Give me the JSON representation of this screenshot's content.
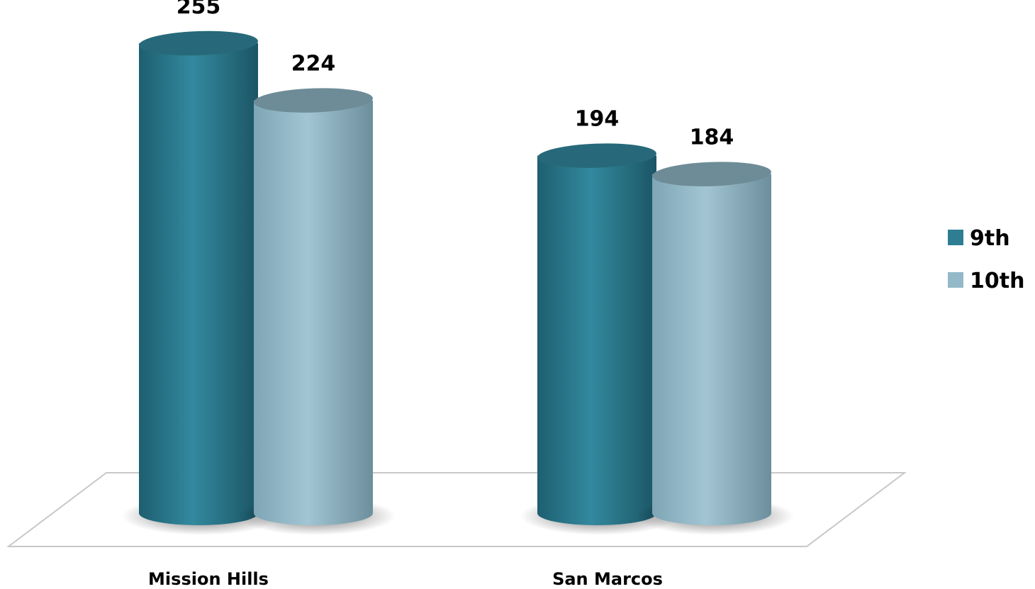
{
  "chart_data": {
    "type": "bar",
    "style": "3d-cylinder",
    "categories": [
      "Mission Hills",
      "San Marcos"
    ],
    "series": [
      {
        "name": "9th",
        "color": "#2e7d92",
        "values": [
          255,
          194
        ]
      },
      {
        "name": "10th",
        "color": "#93b9c8",
        "values": [
          224,
          184
        ]
      }
    ],
    "data_labels": [
      [
        "255",
        "194"
      ],
      [
        "224",
        "184"
      ]
    ],
    "legend_position": "right",
    "grid": false
  }
}
